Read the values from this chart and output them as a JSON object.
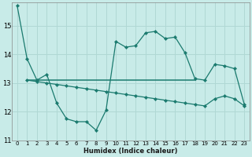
{
  "title": "",
  "xlabel": "Humidex (Indice chaleur)",
  "background_color": "#c8ebe8",
  "grid_color": "#b0d8d4",
  "line_color": "#1a7a6e",
  "xlim": [
    -0.5,
    23.5
  ],
  "ylim": [
    11,
    15.8
  ],
  "yticks": [
    11,
    12,
    13,
    14,
    15
  ],
  "xticks": [
    0,
    1,
    2,
    3,
    4,
    5,
    6,
    7,
    8,
    9,
    10,
    11,
    12,
    13,
    14,
    15,
    16,
    17,
    18,
    19,
    20,
    21,
    22,
    23
  ],
  "line1_x": [
    0,
    1,
    2,
    3,
    4,
    5,
    6,
    7,
    8,
    9,
    10,
    11,
    12,
    13,
    14,
    15,
    16,
    17,
    18,
    19,
    20,
    21,
    22,
    23
  ],
  "line1_y": [
    15.7,
    13.85,
    13.1,
    13.3,
    12.3,
    11.75,
    11.65,
    11.65,
    11.35,
    12.05,
    14.45,
    14.25,
    14.3,
    14.75,
    14.8,
    14.55,
    14.6,
    14.05,
    13.15,
    13.1,
    13.65,
    13.6,
    13.5,
    12.25
  ],
  "line2_x": [
    1,
    2,
    3,
    4,
    5,
    6,
    7,
    8,
    9,
    10,
    11,
    12,
    13,
    14,
    15,
    16,
    17,
    18,
    19,
    20,
    21,
    22,
    23
  ],
  "line2_y": [
    13.1,
    13.05,
    13.0,
    12.95,
    12.9,
    12.85,
    12.8,
    12.75,
    12.7,
    12.65,
    12.6,
    12.55,
    12.5,
    12.45,
    12.4,
    12.35,
    12.3,
    12.25,
    12.2,
    12.45,
    12.55,
    12.45,
    12.2
  ],
  "line3_x": [
    1,
    2,
    3,
    4,
    5,
    6,
    7,
    8,
    9,
    10,
    11,
    12,
    13,
    14,
    15,
    16,
    17,
    18
  ],
  "line3_y": [
    13.1,
    13.1,
    13.1,
    13.1,
    13.1,
    13.1,
    13.1,
    13.1,
    13.1,
    13.1,
    13.1,
    13.1,
    13.1,
    13.1,
    13.1,
    13.1,
    13.1,
    13.1
  ]
}
